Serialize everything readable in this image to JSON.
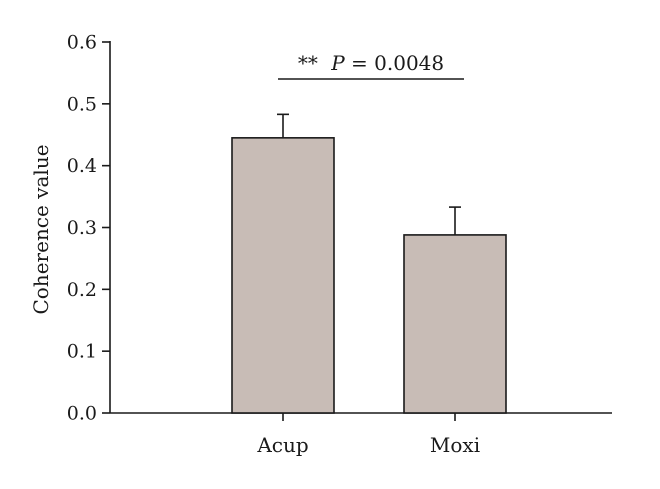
{
  "chart_data": {
    "type": "bar",
    "categories": [
      "Acup",
      "Moxi"
    ],
    "values": [
      0.445,
      0.288
    ],
    "errors": [
      0.038,
      0.045
    ],
    "ylabel": "Coherence value",
    "xlabel": "",
    "ylim": [
      0,
      0.6
    ],
    "yticks": [
      "0.0",
      "0.1",
      "0.2",
      "0.3",
      "0.4",
      "0.5",
      "0.6"
    ],
    "grid": false,
    "annotation": {
      "stars": "**",
      "p_symbol": "P",
      "p_text": " = 0.0048",
      "between": [
        "Acup",
        "Moxi"
      ]
    },
    "colors": {
      "bar_fill": "#c8bcb6",
      "bar_stroke": "#1a1a1a",
      "axis": "#1a1a1a"
    }
  }
}
